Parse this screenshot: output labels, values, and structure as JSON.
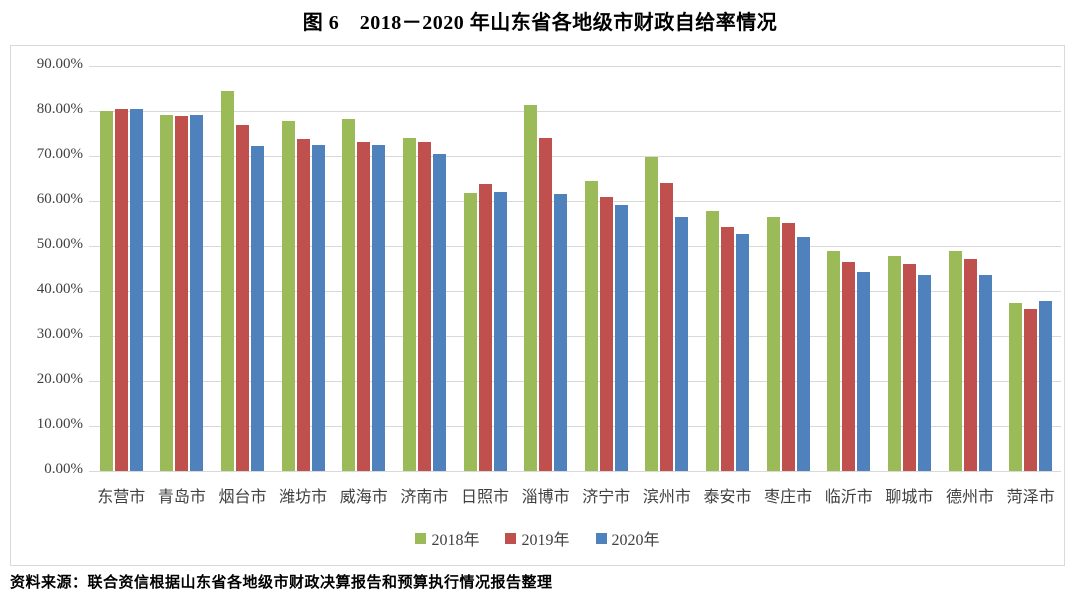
{
  "title": "图 6　2018－2020 年山东省各地级市财政自给率情况",
  "source_note": "资料来源：联合资信根据山东省各地级市财政决算报告和预算执行情况报告整理",
  "colors": {
    "series_2018": "#9BBB59",
    "series_2019": "#C0504D",
    "series_2020": "#4F81BD",
    "gridline": "#D9D9D9",
    "frame_border": "#D9D9D9",
    "tick_text": "#404040"
  },
  "chart_data": {
    "type": "bar",
    "title": "图 6　2018－2020 年山东省各地级市财政自给率情况",
    "categories": [
      "东营市",
      "青岛市",
      "烟台市",
      "潍坊市",
      "威海市",
      "济南市",
      "日照市",
      "淄博市",
      "济宁市",
      "滨州市",
      "泰安市",
      "枣庄市",
      "临沂市",
      "聊城市",
      "德州市",
      "菏泽市"
    ],
    "series": [
      {
        "name": "2018年",
        "color": "#9BBB59",
        "values": [
          80.1,
          79.2,
          84.5,
          77.8,
          78.3,
          74.1,
          61.7,
          81.3,
          64.5,
          69.7,
          57.7,
          56.4,
          48.9,
          47.8,
          48.9,
          37.3
        ]
      },
      {
        "name": "2019年",
        "color": "#C0504D",
        "values": [
          80.4,
          78.8,
          76.8,
          73.7,
          73.1,
          73.2,
          63.8,
          73.9,
          60.8,
          64.1,
          54.2,
          55.2,
          46.5,
          46.0,
          47.1,
          35.9
        ]
      },
      {
        "name": "2020年",
        "color": "#4F81BD",
        "values": [
          80.4,
          79.2,
          72.2,
          72.4,
          72.4,
          70.5,
          61.9,
          61.6,
          59.2,
          56.4,
          52.6,
          52.0,
          44.2,
          43.5,
          43.6,
          37.8
        ]
      }
    ],
    "xlabel": "",
    "ylabel": "",
    "ylim": [
      0,
      90
    ],
    "ytick_step": 10,
    "yticks": [
      "90.00%",
      "80.00%",
      "70.00%",
      "60.00%",
      "50.00%",
      "40.00%",
      "30.00%",
      "20.00%",
      "10.00%",
      "0.00%"
    ],
    "grid": true,
    "legend_position": "bottom"
  }
}
